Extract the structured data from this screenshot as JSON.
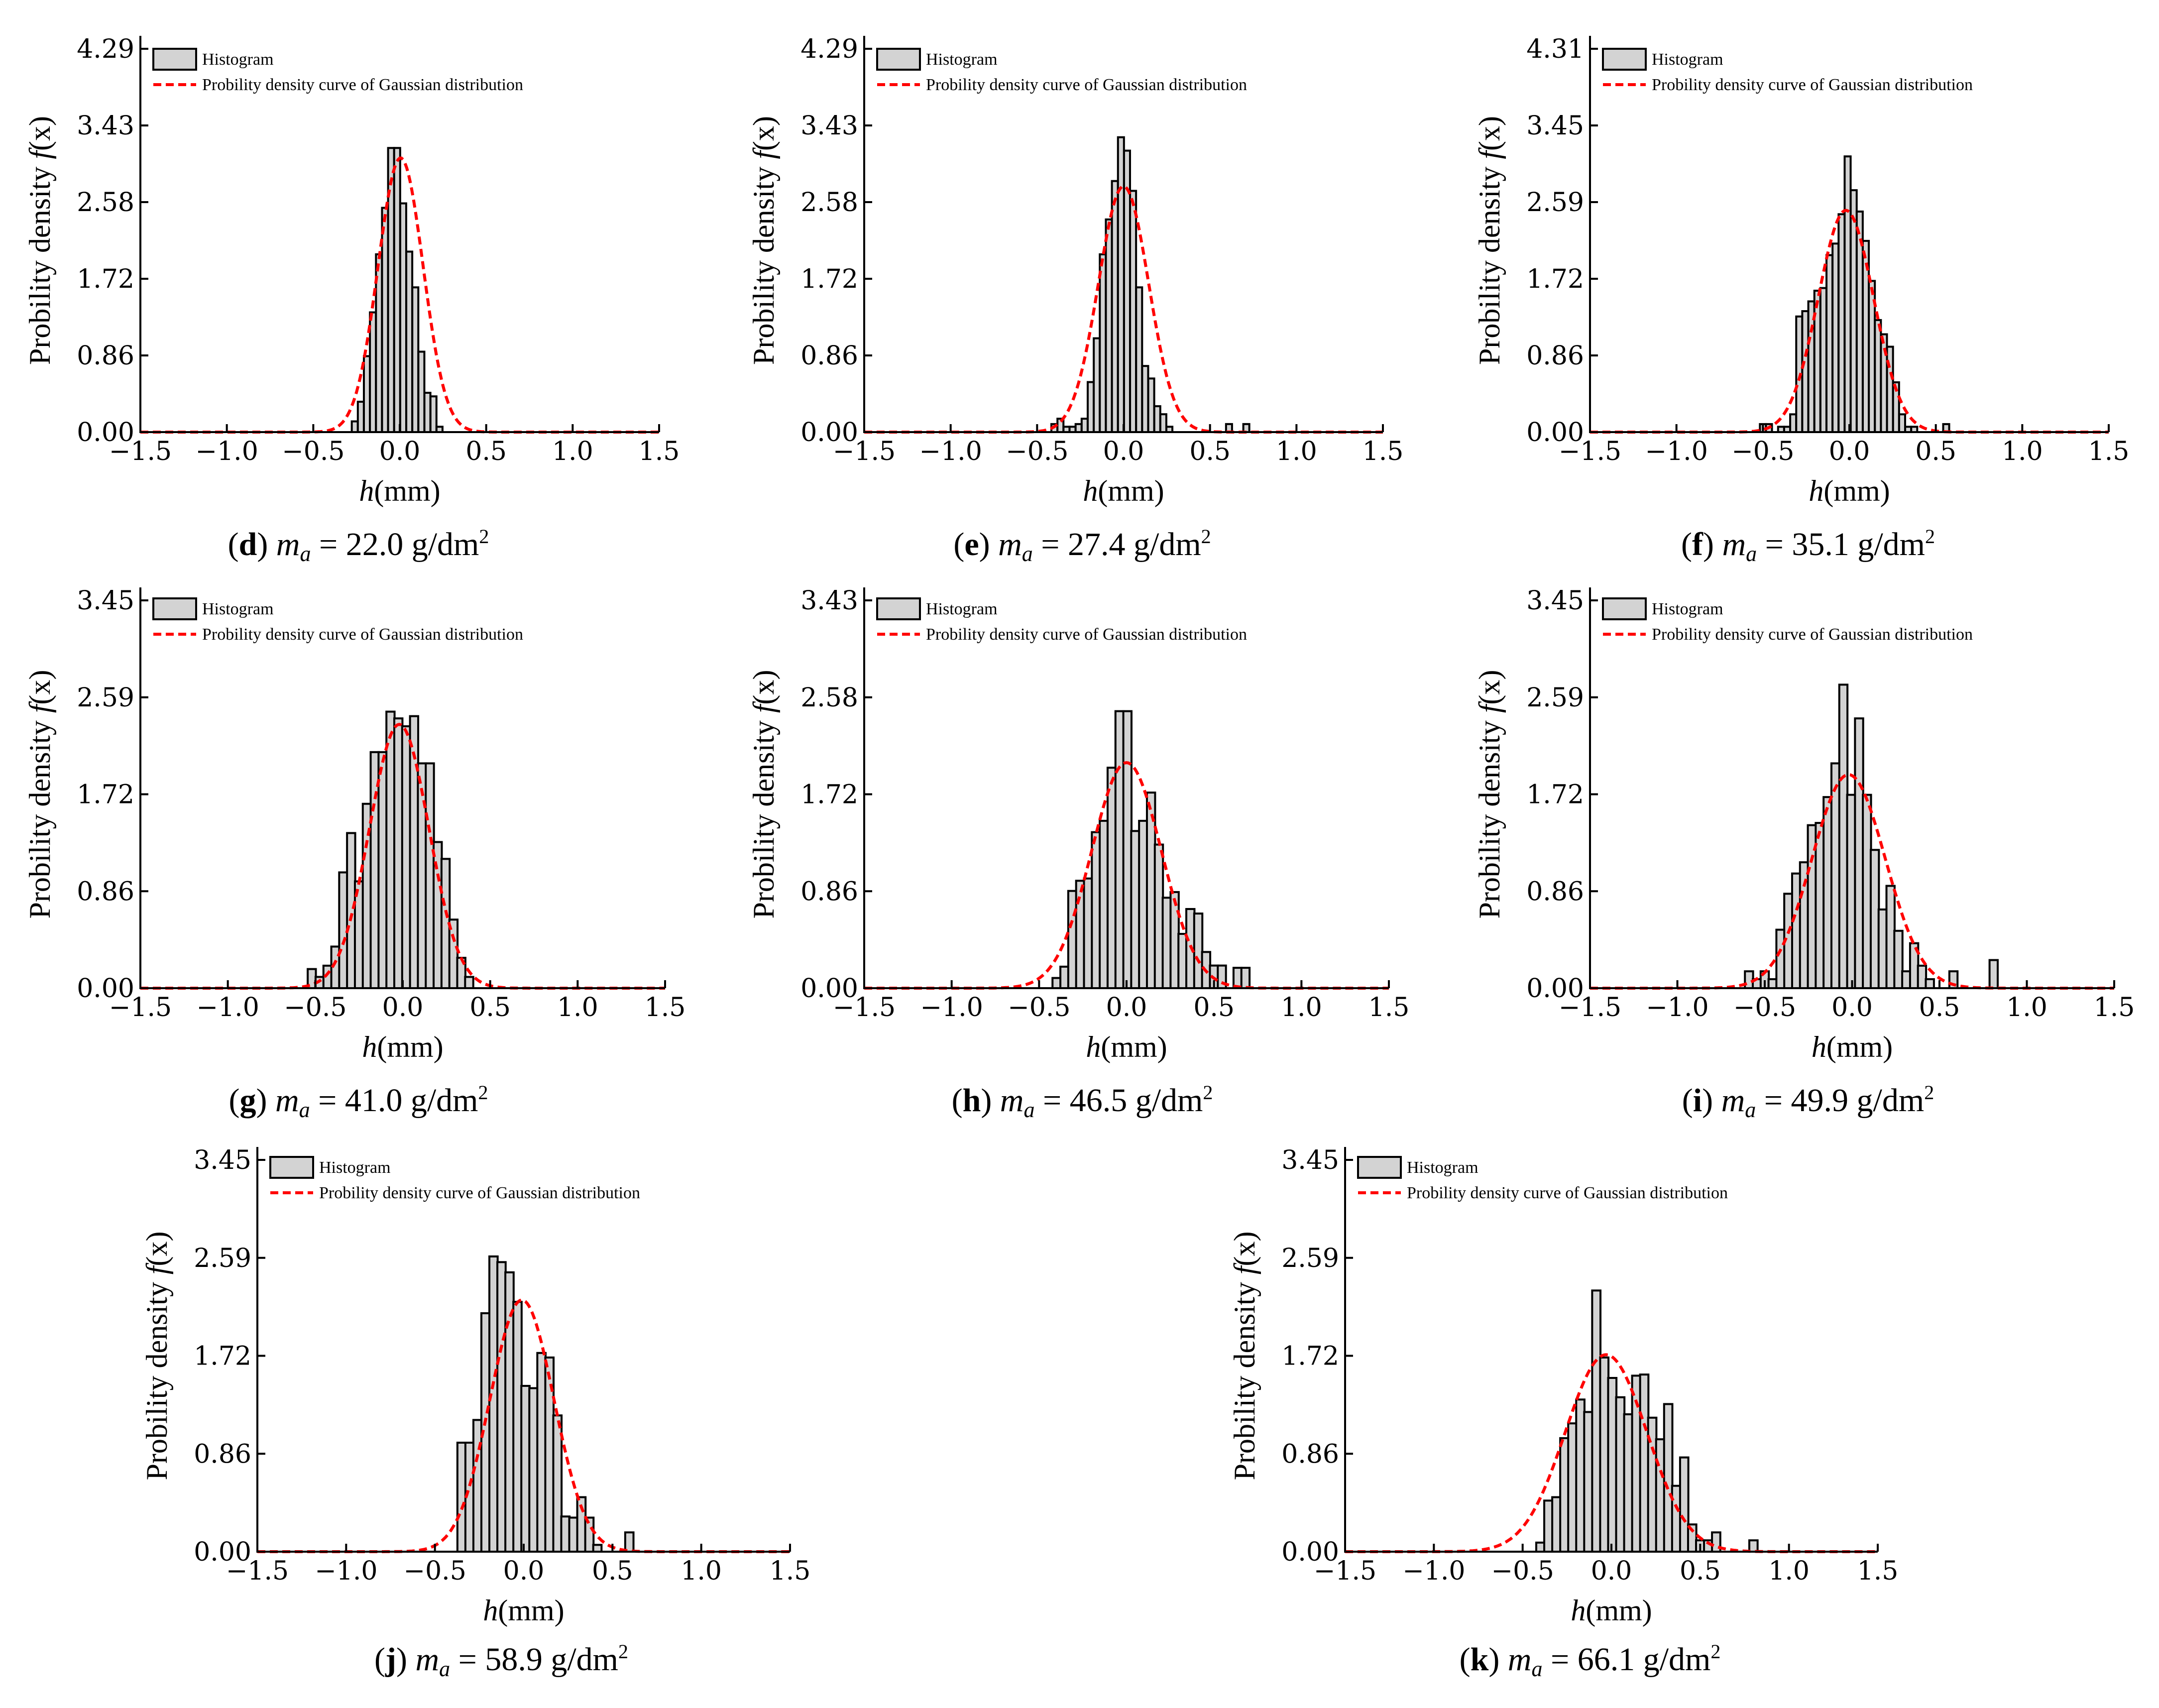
{
  "legend": {
    "histogram_label": "Histogram",
    "curve_label": "Probility density curve of Gaussian distribution"
  },
  "axes": {
    "xlabel_italic": "h",
    "xlabel_rest": "(mm)",
    "ylabel_text": "Probility density ",
    "ylabel_italic": "f",
    "ylabel_rest": "(x)"
  },
  "colors": {
    "bar_fill": "#d3d3d3",
    "bar_stroke": "#000000",
    "curve": "#ff0000"
  },
  "chart_data": [
    {
      "type": "bar",
      "panel": "d",
      "caption_letter": "d",
      "caption_m": "m",
      "caption_sub": "a",
      "caption_value": " = 22.0 g/dm",
      "caption_sup": "2",
      "xlim": [
        -1.5,
        1.5
      ],
      "ylim": [
        0.0,
        4.29
      ],
      "xticks": [
        "−1.5",
        "−1.0",
        "−0.5",
        "0.0",
        "0.5",
        "1.0",
        "1.5"
      ],
      "yticks": [
        "0.00",
        "0.86",
        "1.72",
        "2.58",
        "3.43",
        "4.29"
      ],
      "bin_width": 0.0347,
      "bin_centers": [
        -0.26,
        -0.225,
        -0.19,
        -0.155,
        -0.12,
        -0.085,
        -0.05,
        -0.015,
        0.02,
        0.055,
        0.09,
        0.125,
        0.16,
        0.195,
        0.23,
        0.265,
        0.3
      ],
      "values": [
        0.12,
        0.34,
        0.85,
        1.34,
        1.99,
        2.51,
        3.18,
        3.18,
        2.56,
        2.02,
        1.62,
        0.9,
        0.44,
        0.4,
        0.06,
        0.0,
        0.0
      ],
      "gauss": {
        "mu": 0.005,
        "sigma": 0.13
      }
    },
    {
      "type": "bar",
      "panel": "e",
      "caption_letter": "e",
      "caption_m": "m",
      "caption_sub": "a",
      "caption_value": " = 27.4 g/dm",
      "caption_sup": "2",
      "xlim": [
        -1.5,
        1.5
      ],
      "ylim": [
        0.0,
        4.29
      ],
      "xticks": [
        "−1.5",
        "−1.0",
        "−0.5",
        "0.0",
        "0.5",
        "1.0",
        "1.5"
      ],
      "yticks": [
        "0.00",
        "0.86",
        "1.72",
        "2.58",
        "3.43",
        "4.29"
      ],
      "bin_width": 0.0347,
      "bin_centers": [
        -0.4,
        -0.365,
        -0.33,
        -0.295,
        -0.26,
        -0.225,
        -0.19,
        -0.155,
        -0.12,
        -0.085,
        -0.05,
        -0.015,
        0.02,
        0.055,
        0.09,
        0.125,
        0.16,
        0.195,
        0.23,
        0.265,
        0.3,
        0.335,
        0.37,
        0.61,
        0.71
      ],
      "values": [
        0.09,
        0.15,
        0.06,
        0.06,
        0.09,
        0.15,
        0.56,
        1.05,
        1.99,
        2.38,
        2.81,
        3.3,
        3.15,
        2.7,
        1.62,
        0.74,
        0.6,
        0.29,
        0.2,
        0.06,
        0.0,
        0.0,
        0.0,
        0.09,
        0.09
      ],
      "gauss": {
        "mu": 0.0,
        "sigma": 0.145
      }
    },
    {
      "type": "bar",
      "panel": "f",
      "caption_letter": "f",
      "caption_m": "m",
      "caption_sub": "a",
      "caption_value": " = 35.1 g/dm",
      "caption_sup": "2",
      "xlim": [
        -1.5,
        1.5
      ],
      "ylim": [
        0.0,
        4.31
      ],
      "xticks": [
        "−1.5",
        "−1.0",
        "−0.5",
        "0.0",
        "0.5",
        "1.0",
        "1.5"
      ],
      "yticks": [
        "0.00",
        "0.86",
        "1.72",
        "2.59",
        "3.45",
        "4.31"
      ],
      "bin_width": 0.0347,
      "bin_centers": [
        -0.5,
        -0.465,
        -0.43,
        -0.395,
        -0.36,
        -0.325,
        -0.29,
        -0.255,
        -0.22,
        -0.185,
        -0.15,
        -0.115,
        -0.08,
        -0.045,
        -0.01,
        0.025,
        0.06,
        0.095,
        0.13,
        0.165,
        0.2,
        0.235,
        0.27,
        0.305,
        0.34,
        0.375,
        0.41,
        0.445,
        0.56
      ],
      "values": [
        0.09,
        0.09,
        0.0,
        0.06,
        0.06,
        0.2,
        1.3,
        1.36,
        1.47,
        1.59,
        1.62,
        1.99,
        2.12,
        2.45,
        3.1,
        2.72,
        2.48,
        2.15,
        1.7,
        1.26,
        1.1,
        0.96,
        0.56,
        0.2,
        0.06,
        0.06,
        0.0,
        0.0,
        0.09
      ],
      "gauss": {
        "mu": -0.02,
        "sigma": 0.16
      }
    },
    {
      "type": "bar",
      "panel": "g",
      "caption_letter": "g",
      "caption_m": "m",
      "caption_sub": "a",
      "caption_value": " = 41.0 g/dm",
      "caption_sup": "2",
      "xlim": [
        -1.5,
        1.5
      ],
      "ylim": [
        0.0,
        3.45
      ],
      "xticks": [
        "−1.5",
        "−1.0",
        "−0.5",
        "0.0",
        "0.5",
        "1.0",
        "1.5"
      ],
      "yticks": [
        "0.00",
        "0.86",
        "1.72",
        "2.59",
        "3.45"
      ],
      "bin_width": 0.0467,
      "bin_centers": [
        -0.52,
        -0.475,
        -0.43,
        -0.385,
        -0.34,
        -0.295,
        -0.25,
        -0.205,
        -0.16,
        -0.115,
        -0.07,
        -0.025,
        0.02,
        0.065,
        0.11,
        0.155,
        0.2,
        0.245,
        0.29,
        0.335,
        0.38,
        0.425,
        0.47,
        0.515
      ],
      "values": [
        0.17,
        0.1,
        0.2,
        0.37,
        1.03,
        1.38,
        0.95,
        1.64,
        2.1,
        2.1,
        2.46,
        2.4,
        2.33,
        2.42,
        2.0,
        2.0,
        1.3,
        1.15,
        0.61,
        0.27,
        0.1,
        0.0,
        0.0,
        0.0
      ],
      "gauss": {
        "mu": -0.02,
        "sigma": 0.17
      }
    },
    {
      "type": "bar",
      "panel": "h",
      "caption_letter": "h",
      "caption_m": "m",
      "caption_sub": "a",
      "caption_value": " = 46.5 g/dm",
      "caption_sup": "2",
      "xlim": [
        -1.5,
        1.5
      ],
      "ylim": [
        0.0,
        3.43
      ],
      "xticks": [
        "−1.5",
        "−1.0",
        "−0.5",
        "0.0",
        "0.5",
        "1.0",
        "1.5"
      ],
      "yticks": [
        "0.00",
        "0.86",
        "1.72",
        "2.58",
        "3.43"
      ],
      "bin_width": 0.0467,
      "bin_centers": [
        -0.4,
        -0.355,
        -0.31,
        -0.265,
        -0.22,
        -0.175,
        -0.13,
        -0.085,
        -0.04,
        0.005,
        0.05,
        0.095,
        0.14,
        0.185,
        0.23,
        0.275,
        0.32,
        0.365,
        0.41,
        0.455,
        0.5,
        0.545,
        0.59,
        0.635,
        0.68
      ],
      "values": [
        0.09,
        0.19,
        0.86,
        0.95,
        0.97,
        1.38,
        1.48,
        1.95,
        2.45,
        2.45,
        1.39,
        1.48,
        1.73,
        1.27,
        0.8,
        0.85,
        0.48,
        0.7,
        0.66,
        0.32,
        0.2,
        0.2,
        0.0,
        0.18,
        0.18
      ],
      "gauss": {
        "mu": 0.0,
        "sigma": 0.2
      }
    },
    {
      "type": "bar",
      "panel": "i",
      "caption_letter": "i",
      "caption_m": "m",
      "caption_sub": "a",
      "caption_value": " = 49.9 g/dm",
      "caption_sup": "2",
      "xlim": [
        -1.5,
        1.5
      ],
      "ylim": [
        0.0,
        3.45
      ],
      "xticks": [
        "−1.5",
        "−1.0",
        "−0.5",
        "0.0",
        "0.5",
        "1.0",
        "1.5"
      ],
      "yticks": [
        "0.00",
        "0.86",
        "1.72",
        "2.59",
        "3.45"
      ],
      "bin_width": 0.0467,
      "bin_centers": [
        -0.59,
        -0.545,
        -0.5,
        -0.455,
        -0.41,
        -0.365,
        -0.32,
        -0.275,
        -0.23,
        -0.185,
        -0.14,
        -0.095,
        -0.05,
        -0.005,
        0.04,
        0.085,
        0.13,
        0.175,
        0.22,
        0.265,
        0.31,
        0.355,
        0.4,
        0.445,
        0.49,
        0.535,
        0.58,
        0.81
      ],
      "values": [
        0.15,
        0.08,
        0.15,
        0.08,
        0.52,
        0.84,
        1.02,
        1.12,
        1.45,
        1.47,
        1.7,
        2.0,
        2.7,
        1.72,
        2.4,
        1.72,
        1.23,
        0.7,
        0.91,
        0.51,
        0.15,
        0.4,
        0.2,
        0.08,
        0.0,
        0.0,
        0.15,
        0.25
      ],
      "gauss": {
        "mu": -0.02,
        "sigma": 0.21
      }
    },
    {
      "type": "bar",
      "panel": "j",
      "caption_letter": "j",
      "caption_m": "m",
      "caption_sub": "a",
      "caption_value": " = 58.9 g/dm",
      "caption_sup": "2",
      "xlim": [
        -1.5,
        1.5
      ],
      "ylim": [
        0.0,
        3.45
      ],
      "xticks": [
        "−1.5",
        "−1.0",
        "−0.5",
        "0.0",
        "0.5",
        "1.0",
        "1.5"
      ],
      "yticks": [
        "0.00",
        "0.86",
        "1.72",
        "2.59",
        "3.45"
      ],
      "bin_width": 0.0467,
      "bin_centers": [
        -0.35,
        -0.305,
        -0.26,
        -0.215,
        -0.17,
        -0.125,
        -0.08,
        -0.035,
        0.01,
        0.055,
        0.1,
        0.145,
        0.19,
        0.235,
        0.28,
        0.325,
        0.37,
        0.415,
        0.46,
        0.505,
        0.55,
        0.595
      ],
      "values": [
        0.96,
        0.96,
        1.16,
        2.1,
        2.6,
        2.55,
        2.46,
        2.2,
        1.46,
        1.44,
        1.75,
        1.71,
        1.2,
        0.31,
        0.3,
        0.48,
        0.3,
        0.06,
        0.0,
        0.0,
        0.0,
        0.17
      ],
      "gauss": {
        "mu": -0.01,
        "sigma": 0.18
      }
    },
    {
      "type": "bar",
      "panel": "k",
      "caption_letter": "k",
      "caption_m": "m",
      "caption_sub": "a",
      "caption_value": " = 66.1 g/dm",
      "caption_sup": "2",
      "xlim": [
        -1.5,
        1.5
      ],
      "ylim": [
        0.0,
        3.45
      ],
      "xticks": [
        "−1.5",
        "−1.0",
        "−0.5",
        "0.0",
        "0.5",
        "1.0",
        "1.5"
      ],
      "yticks": [
        "0.00",
        "0.86",
        "1.72",
        "2.59",
        "3.45"
      ],
      "bin_width": 0.0467,
      "bin_centers": [
        -0.4,
        -0.355,
        -0.31,
        -0.265,
        -0.22,
        -0.175,
        -0.13,
        -0.085,
        -0.04,
        0.005,
        0.05,
        0.095,
        0.14,
        0.185,
        0.23,
        0.275,
        0.32,
        0.365,
        0.41,
        0.455,
        0.5,
        0.545,
        0.59,
        0.8
      ],
      "values": [
        0.08,
        0.45,
        0.48,
        1.0,
        1.13,
        1.34,
        1.23,
        2.3,
        1.71,
        1.53,
        1.36,
        1.21,
        1.55,
        1.56,
        1.18,
        0.99,
        1.3,
        0.58,
        0.83,
        0.24,
        0.1,
        0.1,
        0.17,
        0.1
      ],
      "gauss": {
        "mu": -0.03,
        "sigma": 0.23
      }
    }
  ]
}
